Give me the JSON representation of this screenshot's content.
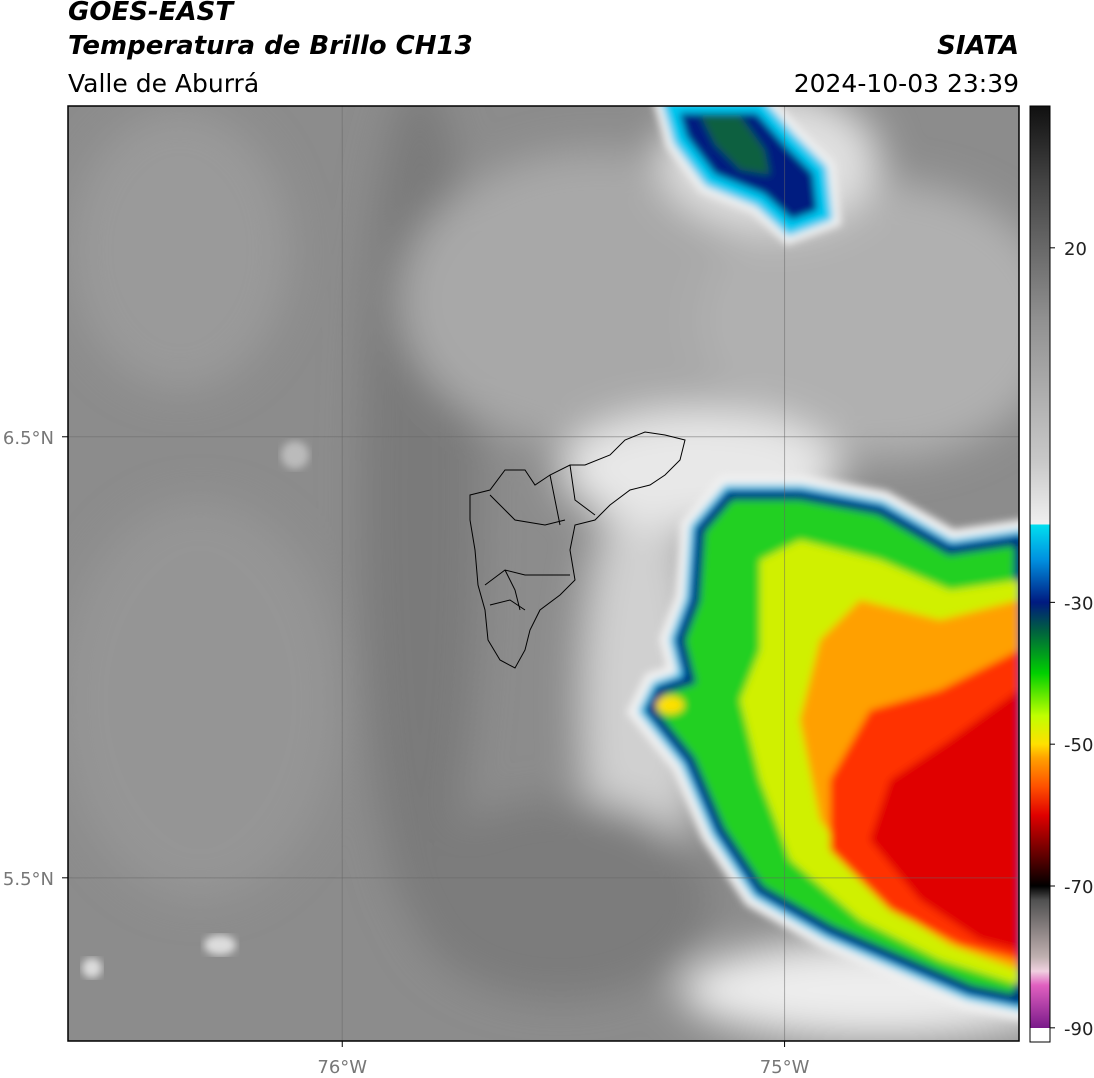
{
  "header": {
    "title": "GOES-EAST",
    "subtitle": "Temperatura de Brillo CH13",
    "region": "Valle de Aburrá",
    "source": "SIATA",
    "datetime": "2024-10-03 23:39"
  },
  "map": {
    "lon_range": [
      -76.62,
      -74.47
    ],
    "lat_range": [
      5.13,
      7.25
    ],
    "lat_ticks": [
      {
        "value": 6.5,
        "label": "6.5°N"
      },
      {
        "value": 5.5,
        "label": "5.5°N"
      }
    ],
    "lon_ticks": [
      {
        "value": -76,
        "label": "76°W"
      },
      {
        "value": -75,
        "label": "75°W"
      }
    ]
  },
  "colorbar": {
    "range": [
      -92,
      40
    ],
    "ticks": [
      20,
      -30,
      -50,
      -70,
      -90
    ],
    "colormap": [
      [
        -92,
        "#ffffff"
      ],
      [
        -90,
        "#ffffff"
      ],
      [
        -90,
        "#7a1a8a"
      ],
      [
        -84,
        "#e060c0"
      ],
      [
        -82,
        "#f0d0e0"
      ],
      [
        -80,
        "#c0b0b0"
      ],
      [
        -72,
        "#505050"
      ],
      [
        -70,
        "#000000"
      ],
      [
        -66,
        "#5a0000"
      ],
      [
        -60,
        "#e00000"
      ],
      [
        -56,
        "#ff5000"
      ],
      [
        -52,
        "#ffa000"
      ],
      [
        -50,
        "#ffe000"
      ],
      [
        -46,
        "#c0ff00"
      ],
      [
        -40,
        "#00d000"
      ],
      [
        -34,
        "#006040"
      ],
      [
        -30,
        "#001a80"
      ],
      [
        -24,
        "#0090e0"
      ],
      [
        -19,
        "#00e0f0"
      ],
      [
        -19,
        "#f0f0f0"
      ],
      [
        -10,
        "#c8c8c8"
      ],
      [
        10,
        "#909090"
      ],
      [
        30,
        "#404040"
      ],
      [
        40,
        "#101010"
      ]
    ]
  }
}
